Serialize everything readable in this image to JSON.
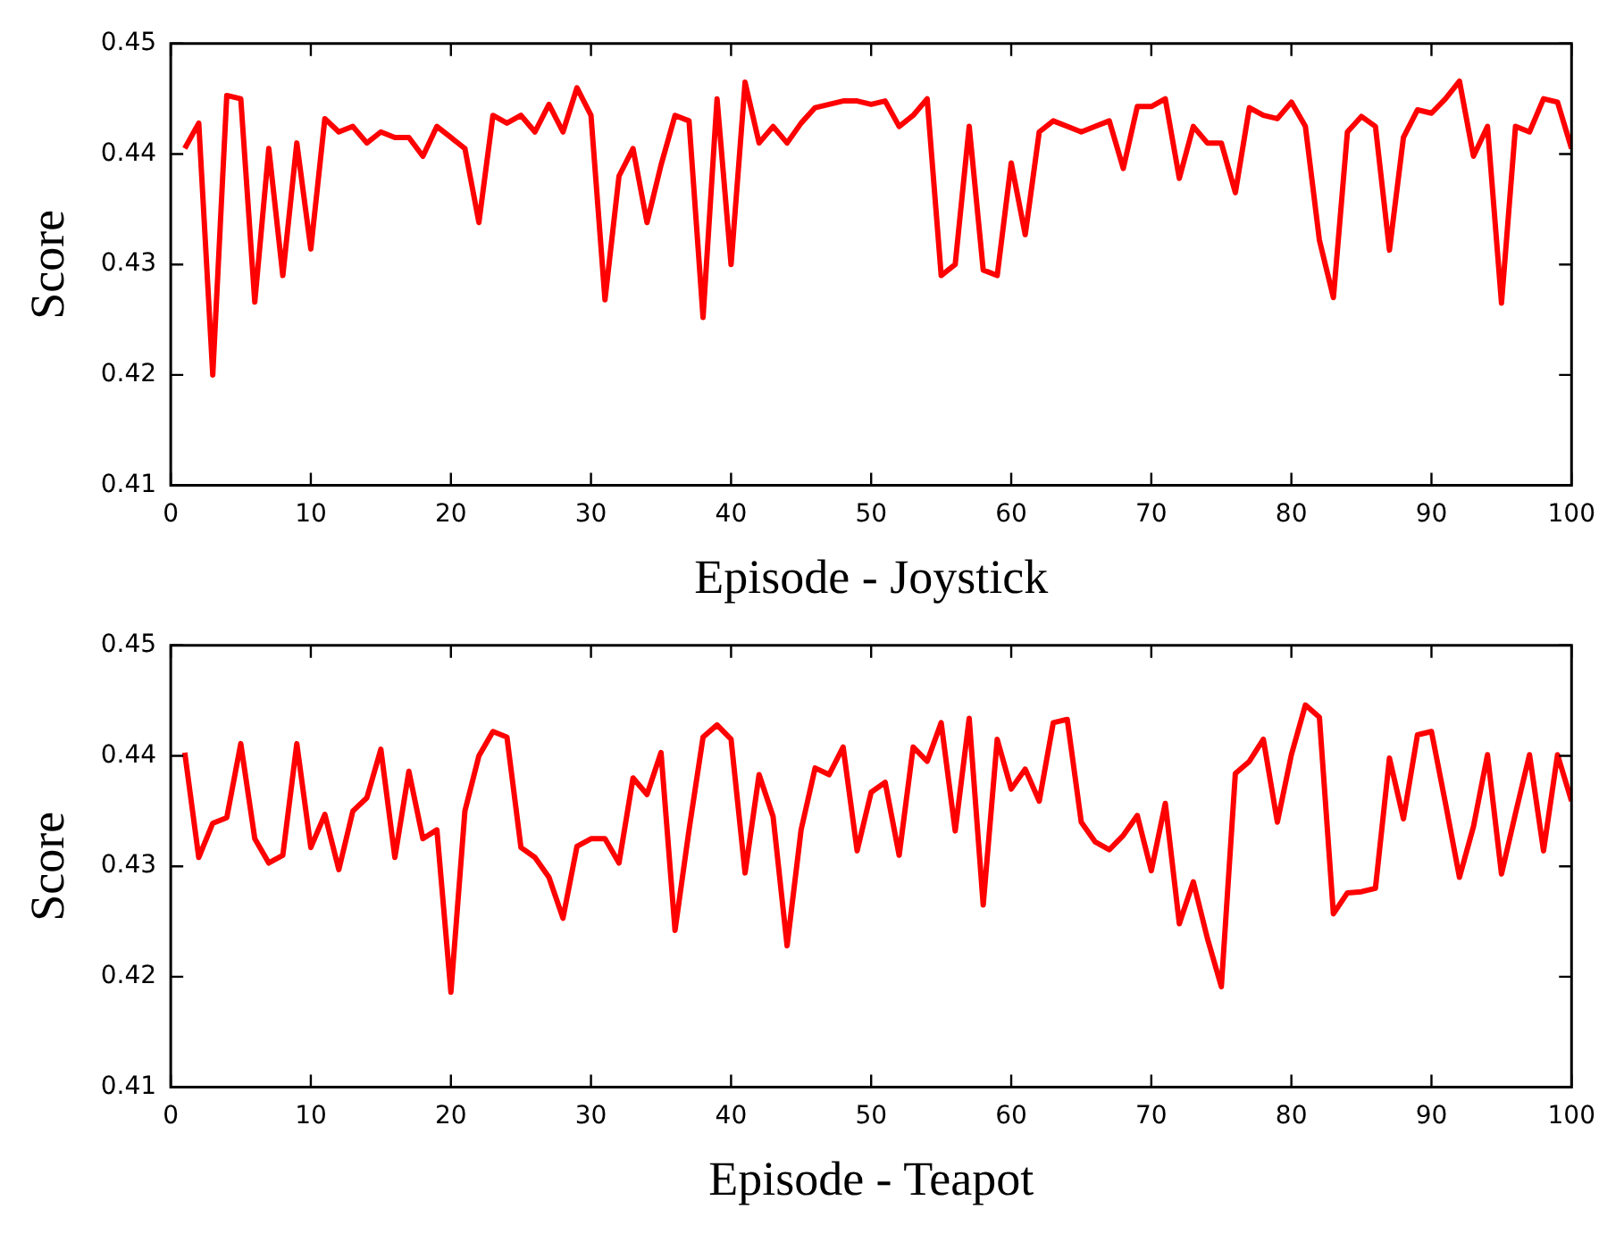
{
  "chart_data": [
    {
      "type": "line",
      "xlabel": "Episode - Joystick",
      "ylabel": "Score",
      "xlim": [
        0,
        100
      ],
      "ylim": [
        0.41,
        0.45
      ],
      "xticks": [
        0,
        10,
        20,
        30,
        40,
        50,
        60,
        70,
        80,
        90,
        100
      ],
      "yticks": [
        0.41,
        0.42,
        0.43,
        0.44,
        0.45
      ],
      "legend": false,
      "marker": "none",
      "line_style": "solid",
      "x": [
        1,
        2,
        3,
        4,
        5,
        6,
        7,
        8,
        9,
        10,
        11,
        12,
        13,
        14,
        15,
        16,
        17,
        18,
        19,
        20,
        21,
        22,
        23,
        24,
        25,
        26,
        27,
        28,
        29,
        30,
        31,
        32,
        33,
        34,
        35,
        36,
        37,
        38,
        39,
        40,
        41,
        42,
        43,
        44,
        45,
        46,
        47,
        48,
        49,
        50,
        51,
        52,
        53,
        54,
        55,
        56,
        57,
        58,
        59,
        60,
        61,
        62,
        63,
        64,
        65,
        66,
        67,
        68,
        69,
        70,
        71,
        72,
        73,
        74,
        75,
        76,
        77,
        78,
        79,
        80,
        81,
        82,
        83,
        84,
        85,
        86,
        87,
        88,
        89,
        90,
        91,
        92,
        93,
        94,
        95,
        96,
        97,
        98,
        99,
        100
      ],
      "series": [
        {
          "color": "#ff0000",
          "values": [
            0.4405,
            0.4428,
            0.42,
            0.4453,
            0.445,
            0.4266,
            0.4405,
            0.429,
            0.441,
            0.4314,
            0.4432,
            0.442,
            0.4425,
            0.441,
            0.442,
            0.4415,
            0.4415,
            0.4398,
            0.4425,
            0.4415,
            0.4405,
            0.4338,
            0.4435,
            0.4428,
            0.4435,
            0.442,
            0.4445,
            0.442,
            0.446,
            0.4435,
            0.4268,
            0.438,
            0.4405,
            0.4338,
            0.439,
            0.4435,
            0.443,
            0.4252,
            0.445,
            0.43,
            0.4465,
            0.441,
            0.4425,
            0.441,
            0.4428,
            0.4442,
            0.4445,
            0.4448,
            0.4448,
            0.4445,
            0.4448,
            0.4425,
            0.4435,
            0.445,
            0.429,
            0.43,
            0.4425,
            0.4295,
            0.429,
            0.4392,
            0.4327,
            0.442,
            0.443,
            0.4425,
            0.442,
            0.4425,
            0.443,
            0.4387,
            0.4443,
            0.4443,
            0.445,
            0.4378,
            0.4425,
            0.441,
            0.441,
            0.4365,
            0.4442,
            0.4435,
            0.4432,
            0.4447,
            0.4425,
            0.4322,
            0.427,
            0.442,
            0.4434,
            0.4425,
            0.4313,
            0.4415,
            0.444,
            0.4437,
            0.445,
            0.4466,
            0.4398,
            0.4425,
            0.4265,
            0.4425,
            0.442,
            0.445,
            0.4447,
            0.4405
          ]
        }
      ]
    },
    {
      "type": "line",
      "xlabel": "Episode - Teapot",
      "ylabel": "Score",
      "xlim": [
        0,
        100
      ],
      "ylim": [
        0.41,
        0.45
      ],
      "xticks": [
        0,
        10,
        20,
        30,
        40,
        50,
        60,
        70,
        80,
        90,
        100
      ],
      "yticks": [
        0.41,
        0.42,
        0.43,
        0.44,
        0.45
      ],
      "legend": false,
      "marker": "none",
      "line_style": "solid",
      "x": [
        1,
        2,
        3,
        4,
        5,
        6,
        7,
        8,
        9,
        10,
        11,
        12,
        13,
        14,
        15,
        16,
        17,
        18,
        19,
        20,
        21,
        22,
        23,
        24,
        25,
        26,
        27,
        28,
        29,
        30,
        31,
        32,
        33,
        34,
        35,
        36,
        37,
        38,
        39,
        40,
        41,
        42,
        43,
        44,
        45,
        46,
        47,
        48,
        49,
        50,
        51,
        52,
        53,
        54,
        55,
        56,
        57,
        58,
        59,
        60,
        61,
        62,
        63,
        64,
        65,
        66,
        67,
        68,
        69,
        70,
        71,
        72,
        73,
        74,
        75,
        76,
        77,
        78,
        79,
        80,
        81,
        82,
        83,
        84,
        85,
        86,
        87,
        88,
        89,
        90,
        91,
        92,
        93,
        94,
        95,
        96,
        97,
        98,
        99,
        100
      ],
      "series": [
        {
          "color": "#ff0000",
          "values": [
            0.4403,
            0.4308,
            0.4339,
            0.4344,
            0.4411,
            0.4325,
            0.4303,
            0.431,
            0.4411,
            0.4317,
            0.4347,
            0.4297,
            0.435,
            0.4362,
            0.4406,
            0.4308,
            0.4386,
            0.4325,
            0.4333,
            0.4186,
            0.435,
            0.44,
            0.4422,
            0.4417,
            0.4317,
            0.4308,
            0.429,
            0.4253,
            0.4318,
            0.4325,
            0.4325,
            0.4303,
            0.438,
            0.4365,
            0.4403,
            0.4242,
            0.4333,
            0.4417,
            0.4428,
            0.4415,
            0.4294,
            0.4383,
            0.4345,
            0.4228,
            0.4333,
            0.4389,
            0.4383,
            0.4408,
            0.4314,
            0.4367,
            0.4376,
            0.431,
            0.4408,
            0.4395,
            0.443,
            0.4332,
            0.4434,
            0.4265,
            0.4415,
            0.437,
            0.4388,
            0.4359,
            0.443,
            0.4433,
            0.434,
            0.4322,
            0.4315,
            0.4328,
            0.4346,
            0.4296,
            0.4357,
            0.4248,
            0.4286,
            0.4235,
            0.4191,
            0.4384,
            0.4395,
            0.4415,
            0.434,
            0.4401,
            0.4446,
            0.4435,
            0.4257,
            0.4276,
            0.4277,
            0.428,
            0.4398,
            0.4343,
            0.4419,
            0.4422,
            0.4357,
            0.429,
            0.4336,
            0.4401,
            0.4293,
            0.4348,
            0.4401,
            0.4314,
            0.4401,
            0.4359
          ]
        }
      ]
    }
  ]
}
